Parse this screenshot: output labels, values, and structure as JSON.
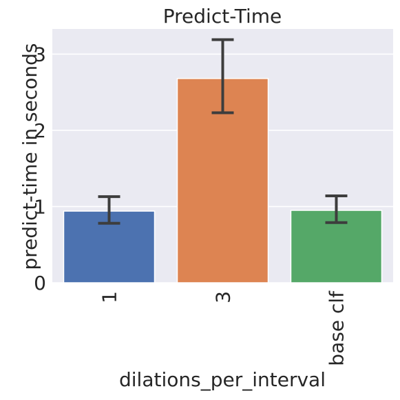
{
  "chart_data": {
    "type": "bar",
    "title": "Predict-Time",
    "xlabel": "dilations_per_interval",
    "ylabel": "predict-time in seconds",
    "categories": [
      "1",
      "3",
      "base clf"
    ],
    "values": [
      0.94,
      2.68,
      0.95
    ],
    "error_low": [
      0.78,
      2.23,
      0.79
    ],
    "error_high": [
      1.13,
      3.19,
      1.14
    ],
    "ylim": [
      0,
      3.33
    ],
    "yticks": [
      0,
      1,
      2,
      3
    ],
    "grid": true,
    "bar_colors": [
      "#4c72b0",
      "#dd8452",
      "#55a868"
    ],
    "background_color": "#eaeaf2",
    "errorbar_color": "#3d3d3d"
  }
}
